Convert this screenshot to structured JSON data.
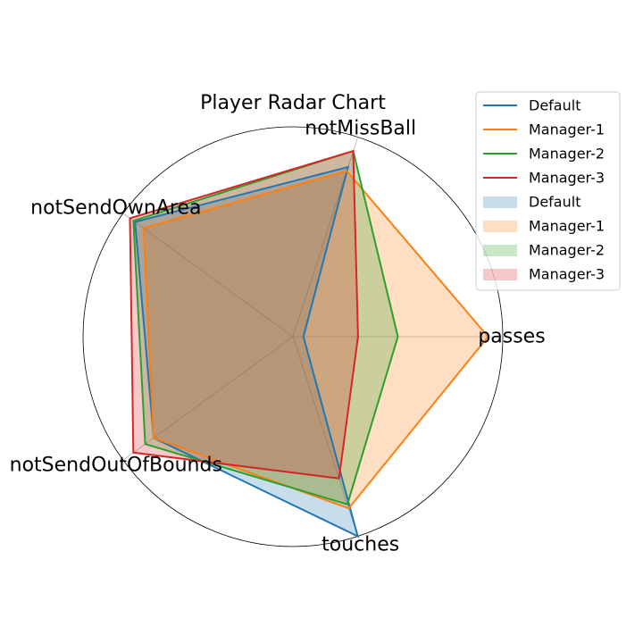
{
  "chart_data": {
    "type": "radar",
    "title": "Player Radar Chart",
    "axes": [
      "passes",
      "notMissBall",
      "notSendOwnArea",
      "notSendOutOfBounds",
      "touches"
    ],
    "scale_max": 1.0,
    "grid": "outer circle only with spokes",
    "legend_placement": "top-right",
    "series": [
      {
        "name": "Default",
        "color": "#1f77b4",
        "values": [
          0.05,
          0.85,
          0.93,
          0.82,
          1.0
        ]
      },
      {
        "name": "Manager-1",
        "color": "#ff7f0e",
        "values": [
          0.93,
          0.83,
          0.88,
          0.82,
          0.86
        ]
      },
      {
        "name": "Manager-2",
        "color": "#2ca02c",
        "values": [
          0.5,
          0.93,
          0.94,
          0.87,
          0.84
        ]
      },
      {
        "name": "Manager-3",
        "color": "#d62728",
        "values": [
          0.31,
          0.93,
          0.96,
          0.94,
          0.71
        ]
      }
    ],
    "legend_entries": [
      "Default",
      "Manager-1",
      "Manager-2",
      "Manager-3",
      "Default",
      "Manager-1",
      "Manager-2",
      "Manager-3"
    ]
  }
}
